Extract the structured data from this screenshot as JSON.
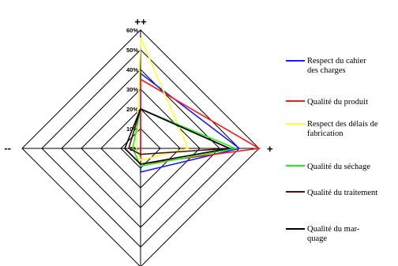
{
  "chart_data": {
    "type": "radar",
    "axis_labels": {
      "top": "++",
      "right": "+",
      "left": "--",
      "bottom": ""
    },
    "radial_ticks": [
      "0%",
      "10%",
      "20%",
      "30%",
      "40%",
      "50%",
      "60%"
    ],
    "radial_range": [
      0,
      60
    ],
    "grid": true,
    "legend_position": "right",
    "series": [
      {
        "name": [
          "Respect du cahier",
          "des charges"
        ],
        "color": "#1a1aff",
        "top": 38,
        "right": 50,
        "bottom": 12,
        "left": 0
      },
      {
        "name": [
          "Qualité du produit"
        ],
        "color": "#ff1a1a",
        "top": 35,
        "right": 60,
        "bottom": 8,
        "left": 0
      },
      {
        "name": [
          "Respect des délais de",
          "fabrication"
        ],
        "color": "#ffff33",
        "top": 56,
        "right": 24,
        "bottom": 6,
        "left": 2
      },
      {
        "name": [
          "Qualité du séchage"
        ],
        "color": "#22ee22",
        "top": 20,
        "right": 48,
        "bottom": 9,
        "left": 4
      },
      {
        "name": [
          "Qualité du traitement"
        ],
        "color": "#4a1010",
        "top": 20,
        "right": 45,
        "bottom": 3,
        "left": 6
      },
      {
        "name": [
          "Qualité du  mar-",
          "quage"
        ],
        "color": "#000000",
        "top": 20,
        "right": 45,
        "bottom": 8,
        "left": 8
      }
    ]
  }
}
